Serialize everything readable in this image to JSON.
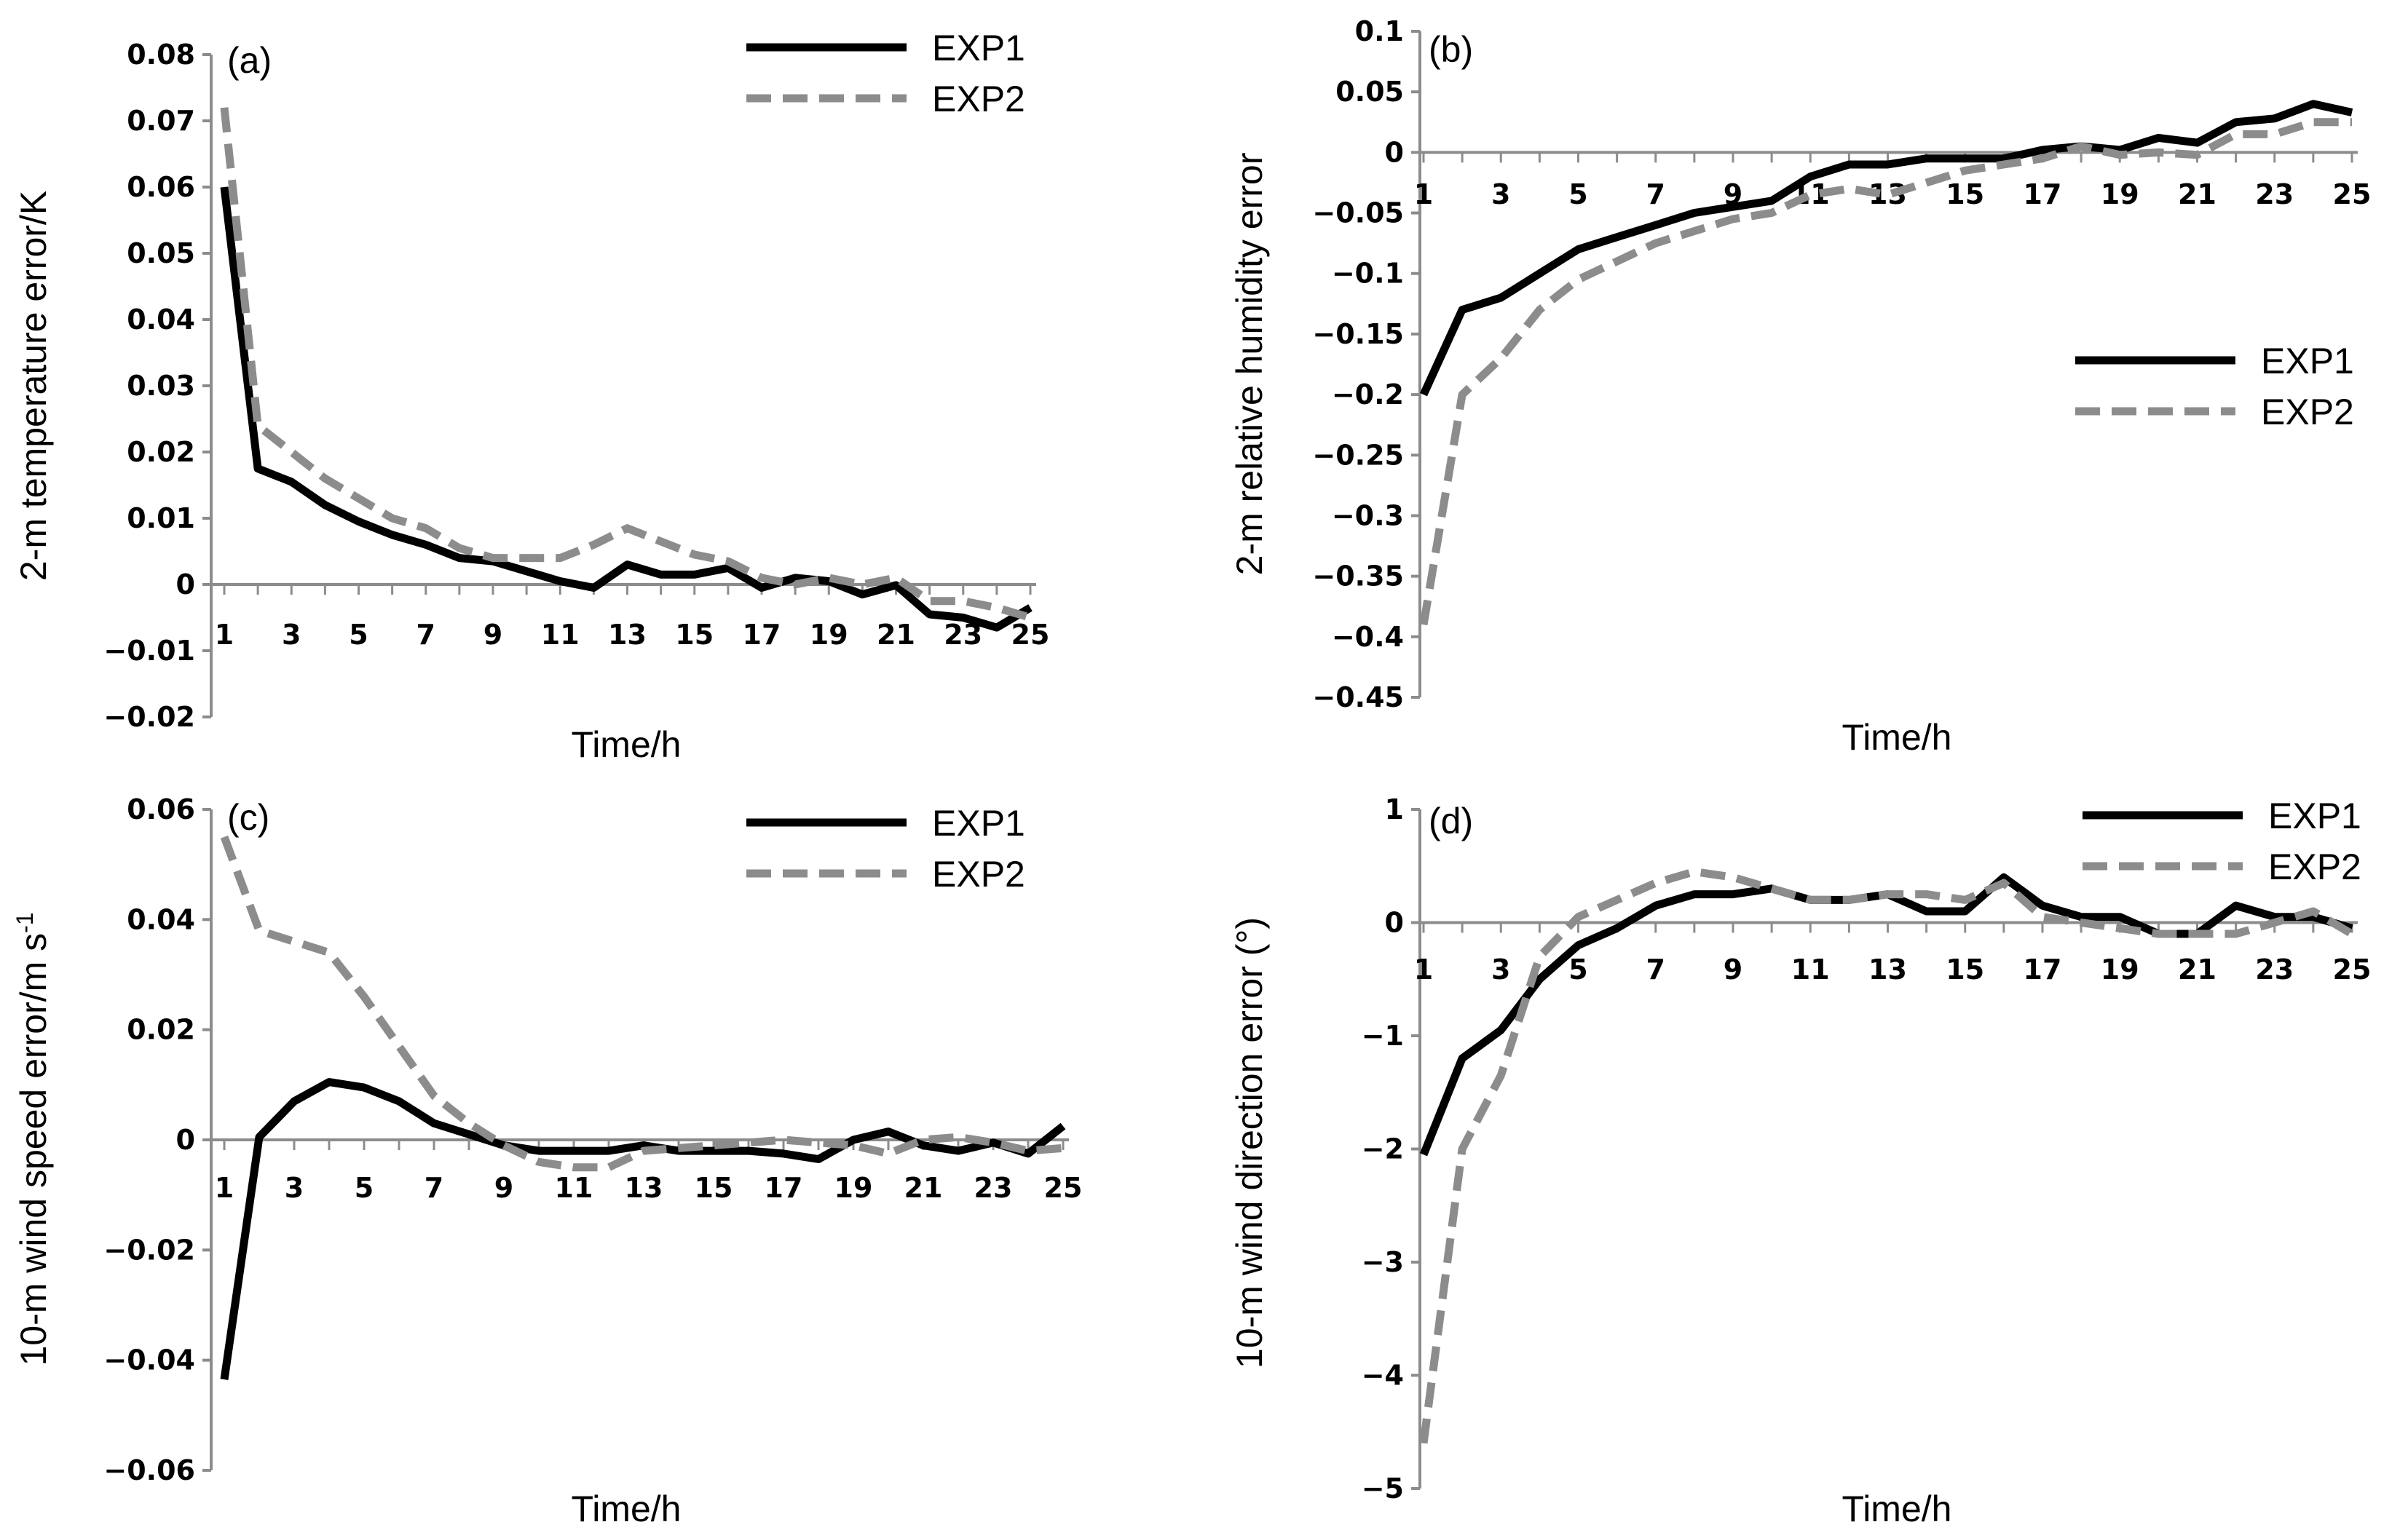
{
  "style": {
    "exp1_color": "#000000",
    "exp2_color": "#8c8c8c",
    "axis_color": "#8c8c8c"
  },
  "chart_data": [
    {
      "type": "line",
      "panel_label": "(a)",
      "xlabel": "Time/h",
      "ylabel": "2-m temperature error/K",
      "ylim": [
        -0.02,
        0.08
      ],
      "yticks": [
        -0.02,
        -0.01,
        0,
        0.01,
        0.02,
        0.03,
        0.04,
        0.05,
        0.06,
        0.07,
        0.08
      ],
      "ytick_labels": [
        "−0.02",
        "−0.01",
        "0",
        "0.01",
        "0.02",
        "0.03",
        "0.04",
        "0.05",
        "0.06",
        "0.07",
        "0.08"
      ],
      "xticks": [
        "1",
        "3",
        "5",
        "7",
        "9",
        "11",
        "13",
        "15",
        "17",
        "19",
        "21",
        "23",
        "25"
      ],
      "legend_position": "top-right",
      "x": [
        1,
        2,
        3,
        4,
        5,
        6,
        7,
        8,
        9,
        10,
        11,
        12,
        13,
        14,
        15,
        16,
        17,
        18,
        19,
        20,
        21,
        22,
        23,
        24,
        25
      ],
      "series": [
        {
          "name": "EXP1",
          "values": [
            0.06,
            0.0175,
            0.0155,
            0.012,
            0.0095,
            0.0075,
            0.006,
            0.004,
            0.0035,
            0.002,
            0.0005,
            -0.0005,
            0.003,
            0.0015,
            0.0015,
            0.0025,
            -0.0005,
            0.001,
            0.0005,
            -0.0015,
            -0.0001,
            -0.0045,
            -0.005,
            -0.0065,
            -0.0035
          ]
        },
        {
          "name": "EXP2",
          "values": [
            0.072,
            0.024,
            0.02,
            0.016,
            0.013,
            0.01,
            0.0085,
            0.0055,
            0.004,
            0.004,
            0.004,
            0.006,
            0.0085,
            0.0065,
            0.0045,
            0.0035,
            0.001,
            0.0,
            0.001,
            0.0,
            0.001,
            -0.0025,
            -0.0025,
            -0.0035,
            -0.005
          ]
        }
      ]
    },
    {
      "type": "line",
      "panel_label": "(b)",
      "xlabel": "Time/h",
      "ylabel": "2-m relative humidity error",
      "ylim": [
        -0.45,
        0.1
      ],
      "yticks": [
        -0.45,
        -0.4,
        -0.35,
        -0.3,
        -0.25,
        -0.2,
        -0.15,
        -0.1,
        -0.05,
        0,
        0.05,
        0.1
      ],
      "ytick_labels": [
        "−0.45",
        "−0.4",
        "−0.35",
        "−0.3",
        "−0.25",
        "−0.2",
        "−0.15",
        "−0.1",
        "−0.05",
        "0",
        "0.05",
        "0.1"
      ],
      "xticks": [
        "1",
        "3",
        "5",
        "7",
        "9",
        "11",
        "13",
        "15",
        "17",
        "19",
        "21",
        "23",
        "25"
      ],
      "legend_position": "right",
      "x": [
        1,
        2,
        3,
        4,
        5,
        6,
        7,
        8,
        9,
        10,
        11,
        12,
        13,
        14,
        15,
        16,
        17,
        18,
        19,
        20,
        21,
        22,
        23,
        24,
        25
      ],
      "series": [
        {
          "name": "EXP1",
          "values": [
            -0.2,
            -0.13,
            -0.12,
            -0.1,
            -0.08,
            -0.07,
            -0.06,
            -0.05,
            -0.045,
            -0.04,
            -0.02,
            -0.01,
            -0.01,
            -0.005,
            -0.005,
            -0.005,
            0.002,
            0.005,
            0.002,
            0.012,
            0.008,
            0.025,
            0.028,
            0.04,
            0.033
          ]
        },
        {
          "name": "EXP2",
          "values": [
            -0.39,
            -0.2,
            -0.17,
            -0.13,
            -0.105,
            -0.09,
            -0.075,
            -0.065,
            -0.055,
            -0.05,
            -0.035,
            -0.03,
            -0.035,
            -0.025,
            -0.015,
            -0.01,
            -0.005,
            0.005,
            -0.002,
            0.0,
            -0.002,
            0.015,
            0.015,
            0.025,
            0.025
          ]
        }
      ]
    },
    {
      "type": "line",
      "panel_label": "(c)",
      "xlabel": "Time/h",
      "ylabel": "10-m wind speed error/m s",
      "ylabel_superscript": "-1",
      "ylim": [
        -0.06,
        0.06
      ],
      "yticks": [
        -0.06,
        -0.04,
        -0.02,
        0,
        0.02,
        0.04,
        0.06
      ],
      "ytick_labels": [
        "−0.06",
        "−0.04",
        "−0.02",
        "0",
        "0.02",
        "0.04",
        "0.06"
      ],
      "xticks": [
        "1",
        "3",
        "5",
        "7",
        "9",
        "11",
        "13",
        "15",
        "17",
        "19",
        "21",
        "23",
        "25"
      ],
      "legend_position": "top-right",
      "x": [
        1,
        2,
        3,
        4,
        5,
        6,
        7,
        8,
        9,
        10,
        11,
        12,
        13,
        14,
        15,
        16,
        17,
        18,
        19,
        20,
        21,
        22,
        23,
        24,
        25
      ],
      "series": [
        {
          "name": "EXP1",
          "values": [
            -0.0435,
            0.0005,
            0.007,
            0.0105,
            0.0095,
            0.007,
            0.003,
            0.001,
            -0.001,
            -0.002,
            -0.002,
            -0.002,
            -0.001,
            -0.002,
            -0.002,
            -0.002,
            -0.0025,
            -0.0035,
            0.0,
            0.0015,
            -0.001,
            -0.002,
            -0.0005,
            -0.0025,
            0.0025
          ]
        },
        {
          "name": "EXP2",
          "values": [
            0.055,
            0.038,
            0.036,
            0.034,
            0.026,
            0.017,
            0.008,
            0.003,
            -0.001,
            -0.004,
            -0.005,
            -0.005,
            -0.002,
            -0.0015,
            -0.001,
            -0.0005,
            0.0,
            -0.0005,
            -0.001,
            -0.0025,
            0.0,
            0.0005,
            -0.0005,
            -0.002,
            -0.0015
          ]
        }
      ]
    },
    {
      "type": "line",
      "panel_label": "(d)",
      "xlabel": "Time/h",
      "ylabel": "10-m wind direction error (°)",
      "ylim": [
        -5,
        1
      ],
      "yticks": [
        -5,
        -4,
        -3,
        -2,
        -1,
        0,
        1
      ],
      "ytick_labels": [
        "−5",
        "−4",
        "−3",
        "−2",
        "−1",
        "0",
        "1"
      ],
      "xticks": [
        "1",
        "3",
        "5",
        "7",
        "9",
        "11",
        "13",
        "15",
        "17",
        "19",
        "21",
        "23",
        "25"
      ],
      "legend_position": "top-right",
      "x": [
        1,
        2,
        3,
        4,
        5,
        6,
        7,
        8,
        9,
        10,
        11,
        12,
        13,
        14,
        15,
        16,
        17,
        18,
        19,
        20,
        21,
        22,
        23,
        24,
        25
      ],
      "series": [
        {
          "name": "EXP1",
          "values": [
            -2.05,
            -1.2,
            -0.95,
            -0.5,
            -0.2,
            -0.05,
            0.15,
            0.25,
            0.25,
            0.3,
            0.2,
            0.2,
            0.25,
            0.1,
            0.1,
            0.4,
            0.15,
            0.05,
            0.05,
            -0.1,
            -0.1,
            0.15,
            0.05,
            0.05,
            -0.05
          ]
        },
        {
          "name": "EXP2",
          "values": [
            -4.6,
            -2.0,
            -1.35,
            -0.3,
            0.05,
            0.2,
            0.35,
            0.45,
            0.4,
            0.3,
            0.2,
            0.2,
            0.25,
            0.25,
            0.2,
            0.35,
            0.05,
            0.0,
            -0.05,
            -0.1,
            -0.1,
            -0.1,
            0.0,
            0.1,
            -0.1
          ]
        }
      ]
    }
  ]
}
